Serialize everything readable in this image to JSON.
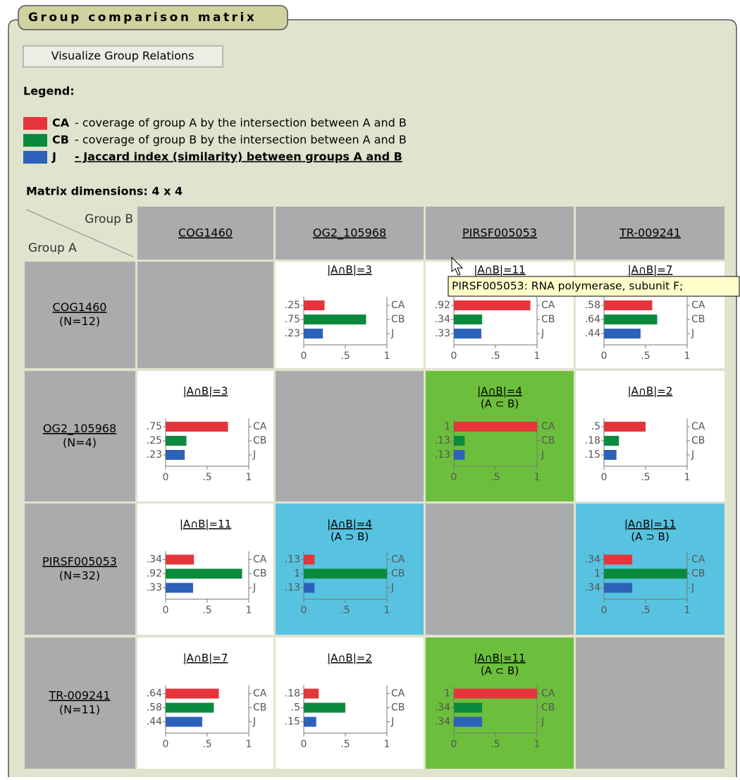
{
  "panel": {
    "title": "Group comparison matrix"
  },
  "button": "Visualize Group Relations",
  "legend": {
    "heading": "Legend:",
    "items": [
      {
        "key": "CA",
        "text": "- coverage of group A by the intersection between A and B",
        "color": "#e5353b"
      },
      {
        "key": "CB",
        "text": "- coverage of group B by the intersection between A and B",
        "color": "#0b8a3e"
      },
      {
        "key": "J",
        "text": "- Jaccard index (similarity) between groups A and B",
        "color": "#2c62b9"
      }
    ]
  },
  "matrix": {
    "dimensions": "Matrix dimensions: 4 x 4",
    "corner": {
      "b": "Group B",
      "a": "Group A"
    },
    "columns": [
      "COG1460",
      "OG2_105968",
      "PIRSF005053",
      "TR-009241"
    ],
    "axis": {
      "xlim": [
        0,
        1
      ],
      "xticks": [
        0,
        {
          "value": 0.5,
          "label": ".5"
        },
        1
      ],
      "series": [
        "CA",
        "CB",
        "J"
      ]
    },
    "rows": [
      {
        "name": "COG1460",
        "size": "(N=12)",
        "cells": [
          null,
          {
            "title": "|A∩B|=3",
            "values": [
              0.25,
              0.75,
              0.23
            ],
            "value_labels": [
              ".25",
              ".75",
              ".23"
            ],
            "background": "#ffffff"
          },
          {
            "title": "|A∩B|=11",
            "values": [
              0.92,
              0.34,
              0.33
            ],
            "value_labels": [
              ".92",
              ".34",
              ".33"
            ],
            "background": "#ffffff"
          },
          {
            "title": "|A∩B|=7",
            "values": [
              0.58,
              0.64,
              0.44
            ],
            "value_labels": [
              ".58",
              ".64",
              ".44"
            ],
            "background": "#ffffff"
          }
        ]
      },
      {
        "name": "OG2_105968",
        "size": "(N=4)",
        "cells": [
          {
            "title": "|A∩B|=3",
            "values": [
              0.75,
              0.25,
              0.23
            ],
            "value_labels": [
              ".75",
              ".25",
              ".23"
            ],
            "background": "#ffffff"
          },
          null,
          {
            "title": "|A∩B|=4",
            "relation": "(A ⊂ B)",
            "values": [
              1,
              0.13,
              0.13
            ],
            "value_labels": [
              "1",
              ".13",
              ".13"
            ],
            "background": "#6cbf3c"
          },
          {
            "title": "|A∩B|=2",
            "values": [
              0.5,
              0.18,
              0.15
            ],
            "value_labels": [
              ".5",
              ".18",
              ".15"
            ],
            "background": "#ffffff"
          }
        ]
      },
      {
        "name": "PIRSF005053",
        "size": "(N=32)",
        "cells": [
          {
            "title": "|A∩B|=11",
            "values": [
              0.34,
              0.92,
              0.33
            ],
            "value_labels": [
              ".34",
              ".92",
              ".33"
            ],
            "background": "#ffffff"
          },
          {
            "title": "|A∩B|=4",
            "relation": "(A ⊃ B)",
            "values": [
              0.13,
              1,
              0.13
            ],
            "value_labels": [
              ".13",
              "1",
              ".13"
            ],
            "background": "#58c3e0"
          },
          null,
          {
            "title": "|A∩B|=11",
            "relation": "(A ⊃ B)",
            "values": [
              0.34,
              1,
              0.34
            ],
            "value_labels": [
              ".34",
              "1",
              ".34"
            ],
            "background": "#58c3e0"
          }
        ]
      },
      {
        "name": "TR-009241",
        "size": "(N=11)",
        "cells": [
          {
            "title": "|A∩B|=7",
            "values": [
              0.64,
              0.58,
              0.44
            ],
            "value_labels": [
              ".64",
              ".58",
              ".44"
            ],
            "background": "#ffffff"
          },
          {
            "title": "|A∩B|=2",
            "values": [
              0.18,
              0.5,
              0.15
            ],
            "value_labels": [
              ".18",
              ".5",
              ".15"
            ],
            "background": "#ffffff"
          },
          {
            "title": "|A∩B|=11",
            "relation": "(A ⊂ B)",
            "values": [
              1,
              0.34,
              0.34
            ],
            "value_labels": [
              "1",
              ".34",
              ".34"
            ],
            "background": "#6cbf3c"
          },
          null
        ]
      }
    ]
  },
  "tooltip": "PIRSF005053: RNA polymerase, subunit F;"
}
